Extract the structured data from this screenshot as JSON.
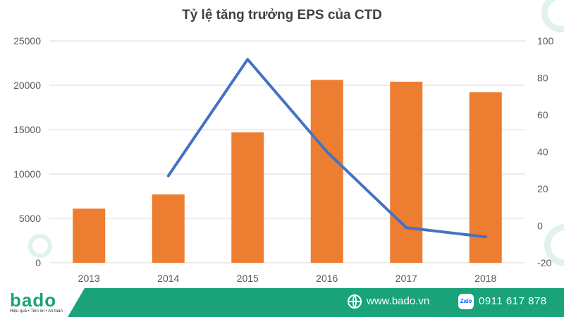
{
  "chart_data": {
    "type": "bar+line",
    "title": "Tỷ lệ tăng trưởng EPS của CTD",
    "categories": [
      "2013",
      "2014",
      "2015",
      "2016",
      "2017",
      "2018"
    ],
    "series": [
      {
        "type": "bar",
        "axis": "left",
        "color": "#ed7d31",
        "values": [
          6100,
          7700,
          14700,
          20600,
          20400,
          19200
        ]
      },
      {
        "type": "line",
        "axis": "right",
        "color": "#4472c4",
        "values": [
          null,
          27,
          90,
          40,
          -1,
          -6
        ]
      }
    ],
    "y_left": {
      "min": 0,
      "max": 25000,
      "ticks": [
        "0",
        "5000",
        "10000",
        "15000",
        "20000",
        "25000"
      ]
    },
    "y_right": {
      "min": -20,
      "max": 100,
      "ticks": [
        "-20",
        "0",
        "20",
        "40",
        "60",
        "80",
        "100"
      ]
    },
    "grid": true,
    "legend": "none"
  },
  "footer": {
    "logo_text": "bado",
    "logo_tagline": "Hiệu quả • Tiện lợi • An toàn",
    "website": "www.bado.vn",
    "zalo_label": "Zalo",
    "phone": "0911 617 878"
  },
  "colors": {
    "brand": "#1aa37a",
    "bar": "#ed7d31",
    "line": "#4472c4"
  },
  "icons": {
    "website": "globe-icon",
    "phone": "zalo-icon"
  }
}
